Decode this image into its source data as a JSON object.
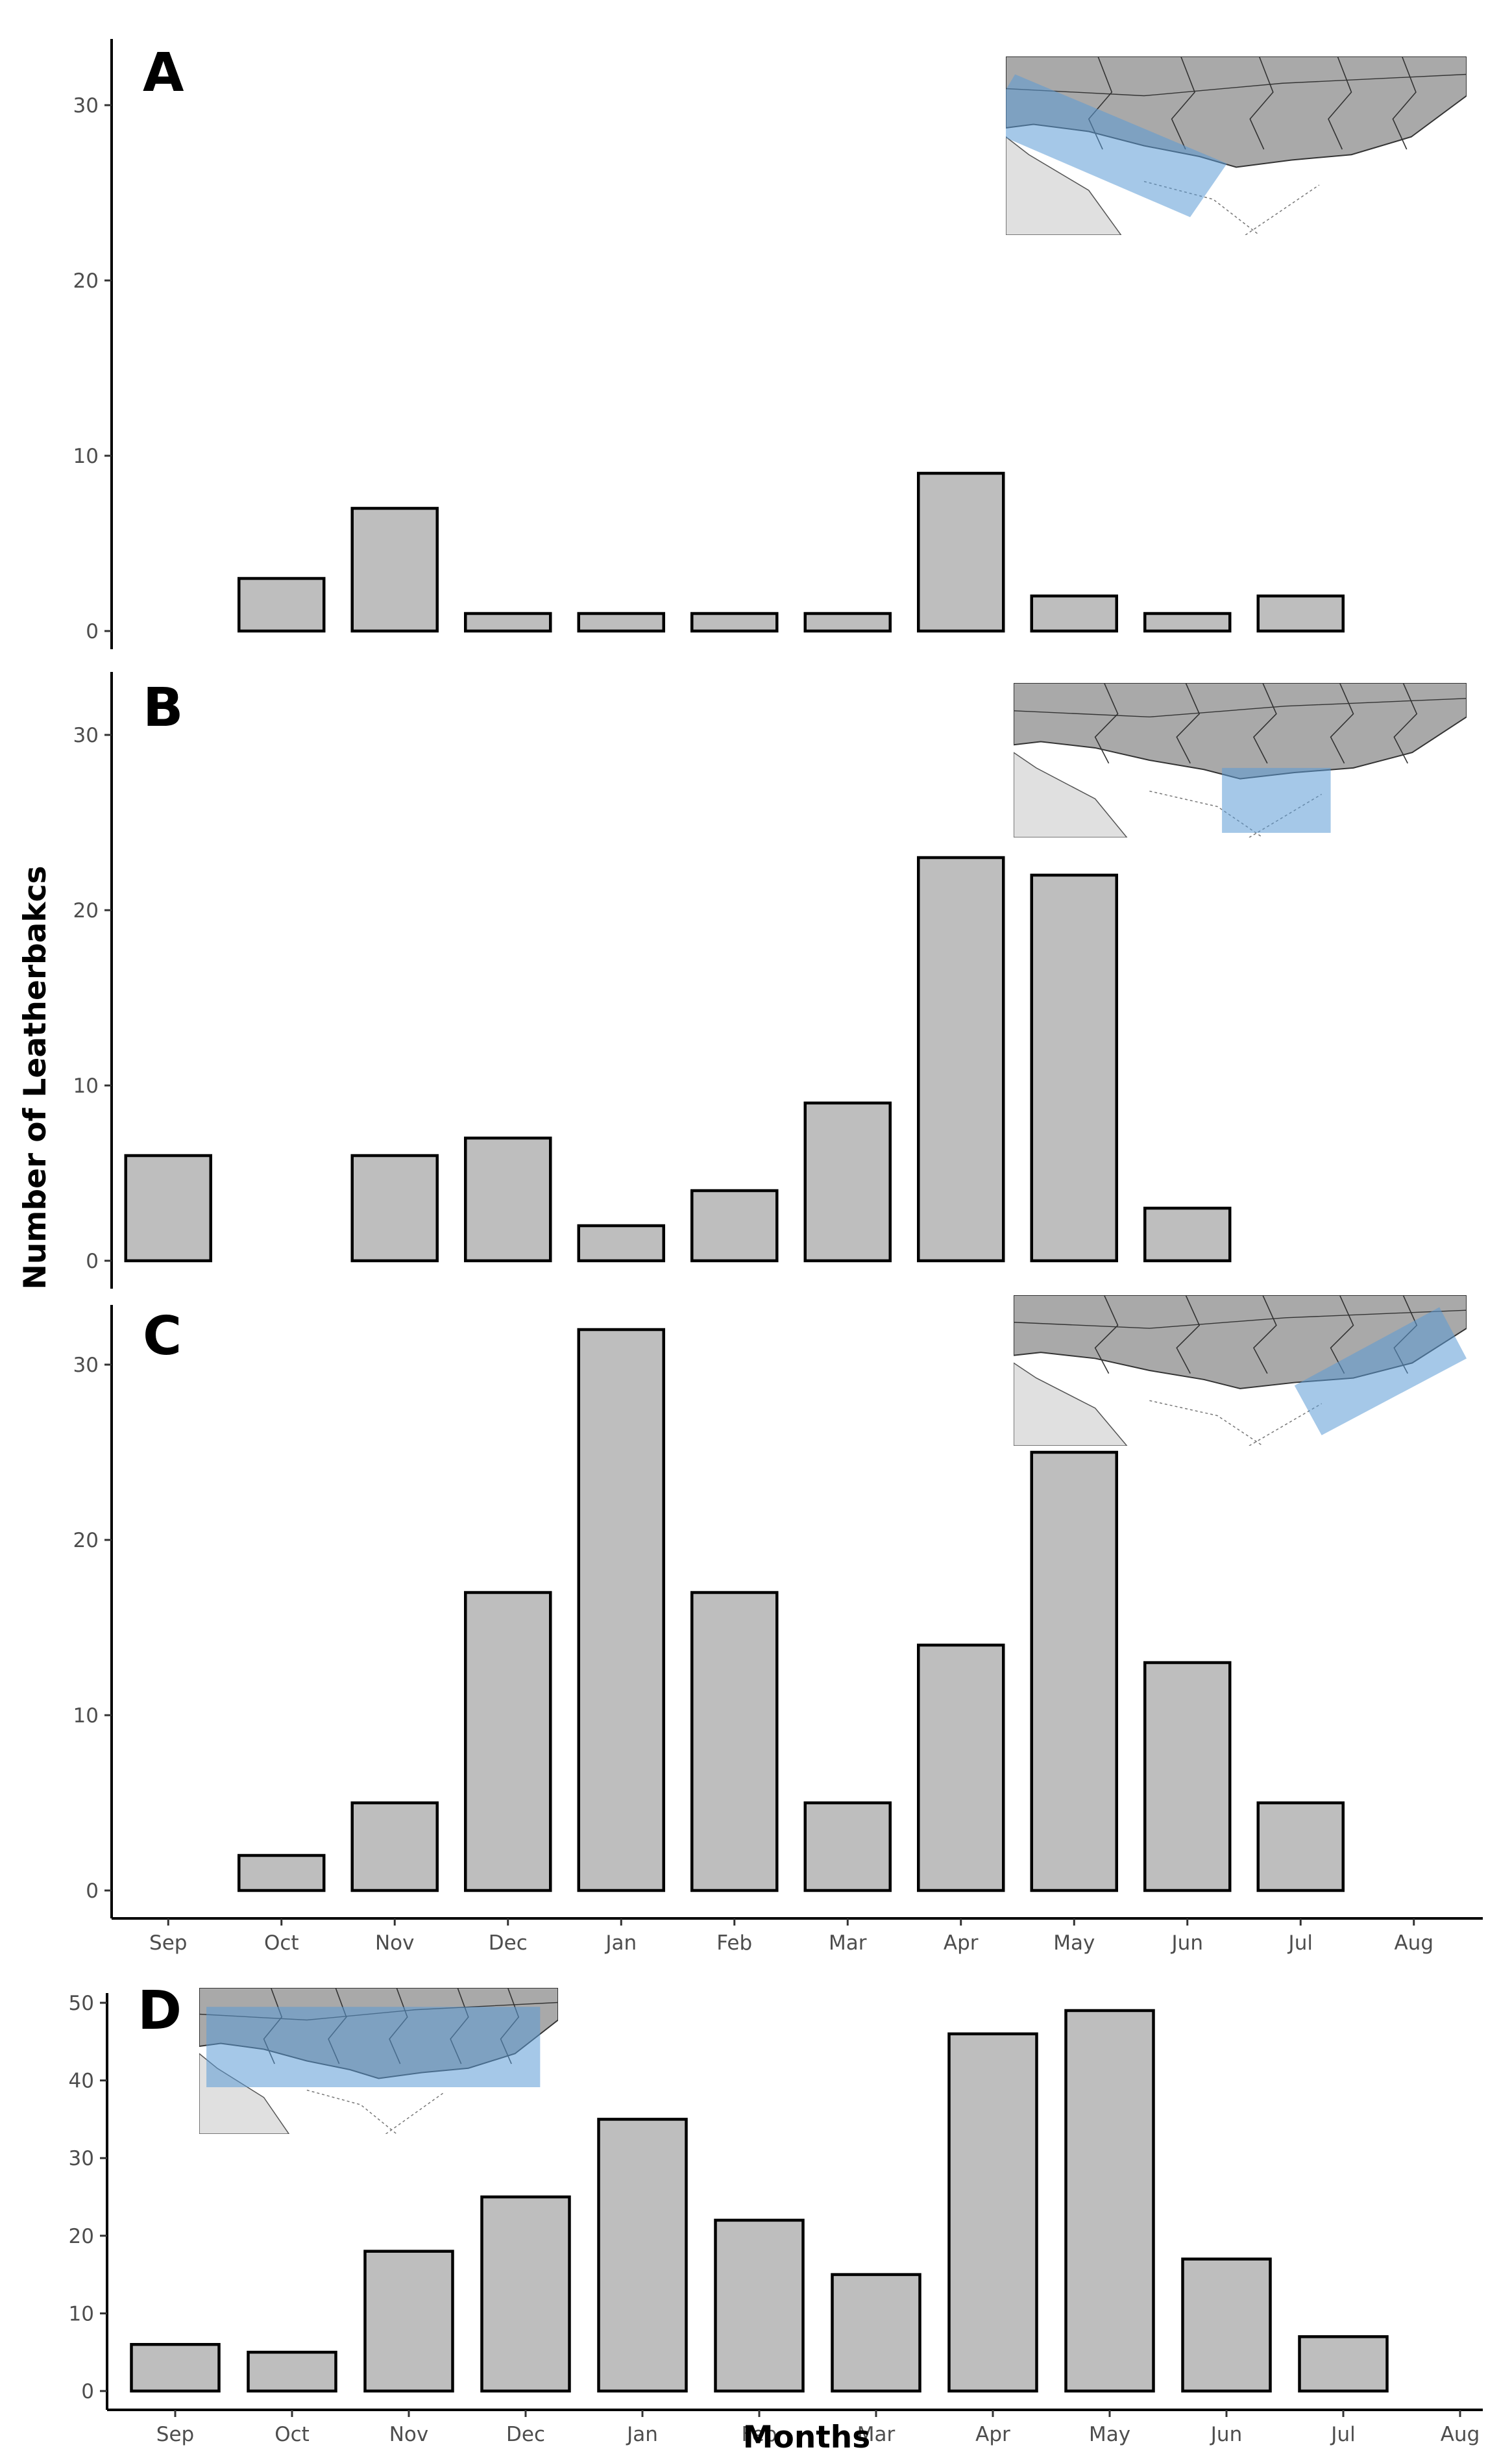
{
  "chart_data": [
    {
      "type": "bar",
      "panel": "A",
      "categories": [
        "Sep",
        "Oct",
        "Nov",
        "Dec",
        "Jan",
        "Feb",
        "Mar",
        "Apr",
        "May",
        "Jun",
        "Jul",
        "Aug"
      ],
      "values": [
        0,
        3,
        7,
        1,
        1,
        1,
        1,
        9,
        2,
        1,
        2,
        0
      ],
      "yticks": [
        0,
        10,
        20,
        30
      ],
      "ylim": [
        0,
        33
      ],
      "inset_map": "region-highlight-west"
    },
    {
      "type": "bar",
      "panel": "B",
      "categories": [
        "Sep",
        "Oct",
        "Nov",
        "Dec",
        "Jan",
        "Feb",
        "Mar",
        "Apr",
        "May",
        "Jun",
        "Jul",
        "Aug"
      ],
      "values": [
        6,
        0,
        6,
        7,
        2,
        4,
        9,
        23,
        22,
        3,
        0,
        0
      ],
      "yticks": [
        0,
        10,
        20,
        30
      ],
      "ylim": [
        0,
        33
      ],
      "inset_map": "region-highlight-central"
    },
    {
      "type": "bar",
      "panel": "C",
      "categories": [
        "Sep",
        "Oct",
        "Nov",
        "Dec",
        "Jan",
        "Feb",
        "Mar",
        "Apr",
        "May",
        "Jun",
        "Jul",
        "Aug"
      ],
      "values": [
        0,
        2,
        5,
        17,
        32,
        17,
        5,
        14,
        25,
        13,
        5,
        0
      ],
      "yticks": [
        0,
        10,
        20,
        30
      ],
      "ylim": [
        0,
        33
      ],
      "xtick_labels_shown": true,
      "inset_map": "region-highlight-east"
    },
    {
      "type": "bar",
      "panel": "D",
      "categories": [
        "Sep",
        "Oct",
        "Nov",
        "Dec",
        "Jan",
        "Feb",
        "Mar",
        "Apr",
        "May",
        "Jun",
        "Jul",
        "Aug"
      ],
      "values": [
        6,
        5,
        18,
        25,
        35,
        22,
        15,
        46,
        49,
        17,
        7,
        0
      ],
      "yticks": [
        0,
        10,
        20,
        30,
        40,
        50
      ],
      "ylim": [
        0,
        52
      ],
      "xtick_labels_shown": true,
      "inset_map": "region-highlight-all"
    }
  ],
  "ylabel": "Number of Leatherbakcs",
  "xlabel": "Months",
  "colors": {
    "bar_fill": "#bebebe",
    "bar_edge": "#000000",
    "map_land": "#a9a9a9",
    "map_sea_shelf": "#e0e0e0",
    "highlight": "#5b9bd5"
  }
}
